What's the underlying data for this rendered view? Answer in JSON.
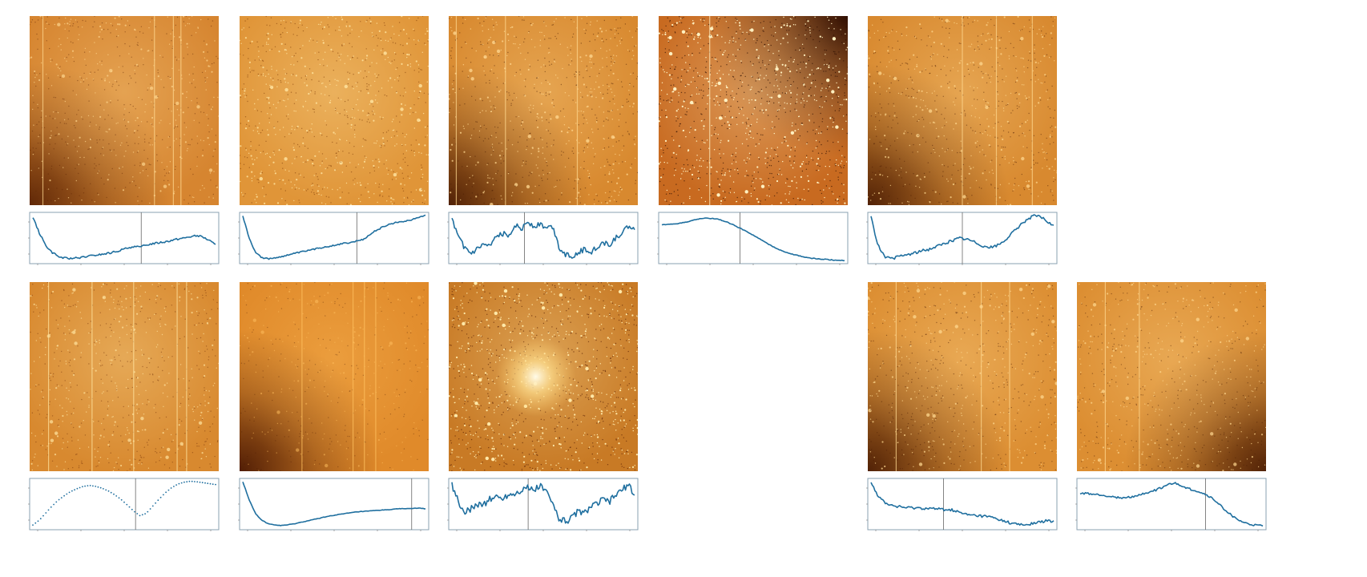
{
  "figure": {
    "bg_colors": {
      "plot_line": "#1f6f9f",
      "frame": "#8aa0b0",
      "marker": "#666666"
    },
    "panels": [
      {
        "id": 1,
        "col": 0,
        "row": 0,
        "title": "",
        "ytick_labels": [
          "",
          "",
          ""
        ],
        "xtick_labels": [
          "",
          "",
          "",
          "",
          ""
        ],
        "xlabel": "",
        "ylabel": "",
        "image": {
          "base": "#d68530",
          "hot": "#ffd890",
          "dark": "#5a2305",
          "dark_corner": "bl",
          "vlines": [
            0.07,
            0.66,
            0.76,
            0.8
          ],
          "sparkle": 0.45,
          "blob": null
        },
        "curve": {
          "style": "line",
          "vline": 0.59,
          "noise": 0.02,
          "values": [
            0.95,
            0.62,
            0.35,
            0.2,
            0.1,
            0.07,
            0.06,
            0.07,
            0.09,
            0.11,
            0.13,
            0.15,
            0.17,
            0.2,
            0.24,
            0.28,
            0.32,
            0.3,
            0.35,
            0.38,
            0.4,
            0.42,
            0.45,
            0.48,
            0.5,
            0.53,
            0.55,
            0.52,
            0.45,
            0.35
          ]
        }
      },
      {
        "id": 2,
        "col": 1,
        "row": 0,
        "title": "",
        "ytick_labels": [
          "",
          "",
          ""
        ],
        "xtick_labels": [
          "",
          "",
          "",
          "",
          ""
        ],
        "xlabel": "",
        "ylabel": "",
        "image": {
          "base": "#e09538",
          "hot": "#ffe4a0",
          "dark": "#7a3808",
          "dark_corner": "none",
          "vlines": [],
          "sparkle": 0.7,
          "blob": null
        },
        "curve": {
          "style": "line",
          "vline": 0.62,
          "noise": 0.015,
          "values": [
            0.98,
            0.5,
            0.2,
            0.08,
            0.05,
            0.07,
            0.1,
            0.13,
            0.16,
            0.19,
            0.22,
            0.25,
            0.28,
            0.31,
            0.33,
            0.36,
            0.38,
            0.4,
            0.43,
            0.46,
            0.55,
            0.65,
            0.72,
            0.78,
            0.82,
            0.85,
            0.87,
            0.9,
            0.95,
            1.0
          ]
        }
      },
      {
        "id": 3,
        "col": 2,
        "row": 0,
        "title": "",
        "ytick_labels": [
          "",
          "",
          ""
        ],
        "xtick_labels": [
          "",
          "",
          "",
          "",
          ""
        ],
        "xlabel": "",
        "ylabel": "",
        "image": {
          "base": "#d8892f",
          "hot": "#ffd890",
          "dark": "#4a1c04",
          "dark_corner": "bl",
          "vlines": [
            0.04,
            0.3,
            0.68
          ],
          "sparkle": 0.6,
          "blob": null
        },
        "curve": {
          "style": "line",
          "vline": 0.4,
          "noise": 0.06,
          "values": [
            0.9,
            0.5,
            0.3,
            0.15,
            0.25,
            0.35,
            0.3,
            0.5,
            0.6,
            0.55,
            0.8,
            0.7,
            0.85,
            0.75,
            0.8,
            0.7,
            0.75,
            0.3,
            0.15,
            0.12,
            0.18,
            0.25,
            0.2,
            0.3,
            0.4,
            0.35,
            0.5,
            0.6,
            0.75,
            0.65
          ]
        }
      },
      {
        "id": 4,
        "col": 3,
        "row": 0,
        "title": "",
        "ytick_labels": [
          "",
          "",
          ""
        ],
        "xtick_labels": [
          "",
          "",
          "",
          "",
          ""
        ],
        "xlabel": "",
        "ylabel": "",
        "image": {
          "base": "#c86a20",
          "hot": "#fff0c0",
          "dark": "#2a0c02",
          "dark_corner": "tr",
          "vlines": [
            0.27
          ],
          "sparkle": 1.0,
          "blob": null
        },
        "curve": {
          "style": "line",
          "vline": 0.43,
          "noise": 0.008,
          "values": [
            0.78,
            0.79,
            0.8,
            0.82,
            0.85,
            0.88,
            0.91,
            0.93,
            0.92,
            0.9,
            0.86,
            0.8,
            0.74,
            0.67,
            0.6,
            0.52,
            0.44,
            0.36,
            0.29,
            0.23,
            0.18,
            0.14,
            0.11,
            0.08,
            0.06,
            0.05,
            0.04,
            0.03,
            0.02,
            0.02
          ]
        }
      },
      {
        "id": 5,
        "col": 4,
        "row": 0,
        "title": "",
        "ytick_labels": [
          "",
          "",
          ""
        ],
        "xtick_labels": [
          "",
          "",
          "",
          "",
          ""
        ],
        "xlabel": "",
        "ylabel": "",
        "image": {
          "base": "#d8892f",
          "hot": "#ffd890",
          "dark": "#4a1c04",
          "dark_corner": "bl",
          "vlines": [
            0.5,
            0.68,
            0.87
          ],
          "sparkle": 0.55,
          "blob": null
        },
        "curve": {
          "style": "line",
          "vline": 0.5,
          "noise": 0.03,
          "values": [
            0.95,
            0.4,
            0.12,
            0.05,
            0.08,
            0.12,
            0.15,
            0.18,
            0.22,
            0.25,
            0.3,
            0.35,
            0.4,
            0.45,
            0.5,
            0.48,
            0.44,
            0.38,
            0.32,
            0.3,
            0.34,
            0.42,
            0.55,
            0.68,
            0.82,
            0.92,
            0.98,
            0.95,
            0.85,
            0.75
          ]
        }
      },
      {
        "id": 6,
        "col": 0,
        "row": 1,
        "title": "",
        "ytick_labels": [
          "",
          "",
          ""
        ],
        "xtick_labels": [
          "",
          "",
          "",
          "",
          ""
        ],
        "xlabel": "",
        "ylabel": "",
        "image": {
          "base": "#d8892f",
          "hot": "#ffe4a0",
          "dark": "#6a2a06",
          "dark_corner": "none",
          "vlines": [
            0.1,
            0.33,
            0.55,
            0.78,
            0.83
          ],
          "sparkle": 0.5,
          "blob": null
        },
        "curve": {
          "style": "dotted",
          "vline": 0.56,
          "noise": 0.0,
          "values": [
            0.05,
            0.15,
            0.3,
            0.45,
            0.58,
            0.68,
            0.77,
            0.83,
            0.88,
            0.9,
            0.88,
            0.84,
            0.78,
            0.7,
            0.6,
            0.48,
            0.35,
            0.25,
            0.3,
            0.45,
            0.6,
            0.74,
            0.85,
            0.93,
            0.97,
            0.99,
            0.98,
            0.96,
            0.94,
            0.92
          ]
        }
      },
      {
        "id": 7,
        "col": 1,
        "row": 1,
        "title": "",
        "ytick_labels": [
          "",
          "",
          ""
        ],
        "xtick_labels": [
          "",
          "",
          "",
          "",
          ""
        ],
        "xlabel": "",
        "ylabel": "",
        "image": {
          "base": "#e08a2a",
          "hot": "#ffc060",
          "dark": "#4a1803",
          "dark_corner": "bl",
          "vlines": [
            0.33,
            0.6,
            0.66,
            0.72
          ],
          "sparkle": 0.2,
          "blob": null
        },
        "curve": {
          "style": "line",
          "vline": 0.91,
          "noise": 0.006,
          "values": [
            0.98,
            0.6,
            0.3,
            0.15,
            0.08,
            0.05,
            0.04,
            0.05,
            0.07,
            0.1,
            0.13,
            0.16,
            0.19,
            0.22,
            0.25,
            0.27,
            0.29,
            0.31,
            0.33,
            0.34,
            0.35,
            0.36,
            0.37,
            0.38,
            0.39,
            0.4,
            0.4,
            0.41,
            0.41,
            0.4
          ]
        }
      },
      {
        "id": 8,
        "col": 2,
        "row": 1,
        "title": "",
        "ytick_labels": [
          "",
          "",
          ""
        ],
        "xtick_labels": [
          "",
          "",
          "",
          "",
          ""
        ],
        "xlabel": "",
        "ylabel": "",
        "image": {
          "base": "#c87a25",
          "hot": "#ffe8a8",
          "dark": "#5a2206",
          "dark_corner": "none",
          "vlines": [],
          "sparkle": 1.0,
          "blob": [
            0.46,
            0.5
          ]
        },
        "curve": {
          "style": "line",
          "vline": 0.42,
          "noise": 0.07,
          "values": [
            0.92,
            0.55,
            0.3,
            0.4,
            0.5,
            0.48,
            0.6,
            0.65,
            0.62,
            0.7,
            0.72,
            0.8,
            0.85,
            0.78,
            0.9,
            0.75,
            0.5,
            0.2,
            0.12,
            0.2,
            0.35,
            0.3,
            0.45,
            0.5,
            0.6,
            0.55,
            0.7,
            0.8,
            0.92,
            0.65
          ]
        }
      },
      {
        "id": 9,
        "col": 4,
        "row": 1,
        "title": "",
        "ytick_labels": [
          "",
          "",
          ""
        ],
        "xtick_labels": [
          "",
          "",
          "",
          "",
          ""
        ],
        "xlabel": "",
        "ylabel": "",
        "image": {
          "base": "#dc8e32",
          "hot": "#ffd890",
          "dark": "#4a1c04",
          "dark_corner": "bl",
          "vlines": [
            0.15,
            0.6,
            0.75
          ],
          "sparkle": 0.55,
          "blob": null
        },
        "curve": {
          "style": "line",
          "vline": 0.4,
          "noise": 0.03,
          "values": [
            0.98,
            0.7,
            0.55,
            0.48,
            0.45,
            0.43,
            0.42,
            0.42,
            0.41,
            0.41,
            0.4,
            0.39,
            0.38,
            0.37,
            0.32,
            0.28,
            0.26,
            0.25,
            0.24,
            0.22,
            0.18,
            0.14,
            0.1,
            0.07,
            0.05,
            0.06,
            0.09,
            0.12,
            0.14,
            0.12
          ]
        }
      },
      {
        "id": 10,
        "col": 5,
        "row": 1,
        "title": "",
        "ytick_labels": [
          "",
          "",
          ""
        ],
        "xtick_labels": [
          "",
          "",
          "",
          "",
          ""
        ],
        "xlabel": "",
        "ylabel": "",
        "image": {
          "base": "#dc8e32",
          "hot": "#ffd890",
          "dark": "#4a1c04",
          "dark_corner": "br",
          "vlines": [
            0.15,
            0.33
          ],
          "sparkle": 0.5,
          "blob": null
        },
        "curve": {
          "style": "line",
          "vline": 0.68,
          "noise": 0.02,
          "values": [
            0.72,
            0.73,
            0.71,
            0.7,
            0.68,
            0.66,
            0.64,
            0.63,
            0.65,
            0.68,
            0.72,
            0.76,
            0.8,
            0.86,
            0.92,
            0.95,
            0.9,
            0.84,
            0.8,
            0.76,
            0.7,
            0.62,
            0.5,
            0.38,
            0.26,
            0.16,
            0.1,
            0.06,
            0.04,
            0.03
          ]
        }
      }
    ]
  }
}
